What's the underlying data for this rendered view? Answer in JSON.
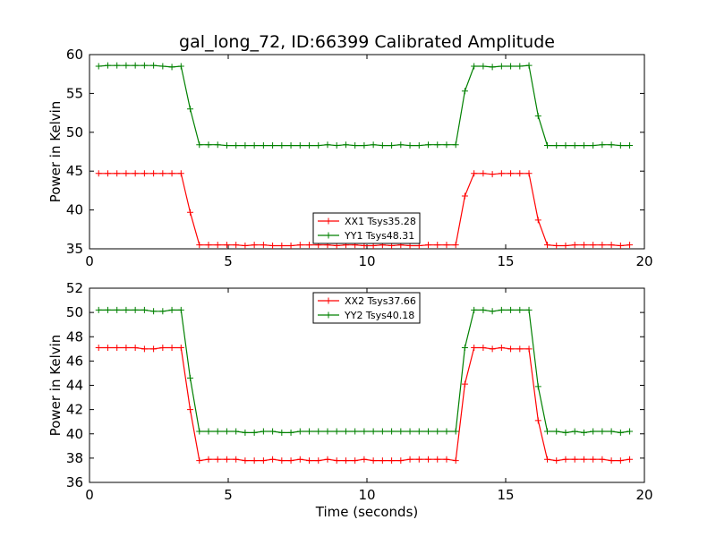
{
  "figure": {
    "title": "gal_long_72, ID:66399 Calibrated Amplitude",
    "xlabel": "Time (seconds)"
  },
  "chart_data": [
    {
      "type": "line",
      "title": "gal_long_72, ID:66399 Calibrated Amplitude",
      "xlabel": "",
      "ylabel": "Power in Kelvin",
      "xlim": [
        0,
        20
      ],
      "ylim": [
        35,
        60
      ],
      "xticks": [
        0,
        5,
        10,
        15,
        20
      ],
      "yticks": [
        35,
        40,
        45,
        50,
        55,
        60
      ],
      "grid": false,
      "legend": "bottom-center",
      "x": [
        0.33,
        0.66,
        0.99,
        1.32,
        1.65,
        1.98,
        2.31,
        2.64,
        2.97,
        3.3,
        3.63,
        3.96,
        4.29,
        4.62,
        4.95,
        5.28,
        5.61,
        5.94,
        6.27,
        6.6,
        6.93,
        7.26,
        7.59,
        7.92,
        8.25,
        8.58,
        8.91,
        9.24,
        9.57,
        9.9,
        10.23,
        10.56,
        10.89,
        11.22,
        11.55,
        11.88,
        12.21,
        12.54,
        12.87,
        13.2,
        13.53,
        13.86,
        14.19,
        14.52,
        14.85,
        15.18,
        15.51,
        15.84,
        16.17,
        16.5,
        16.83,
        17.16,
        17.49,
        17.82,
        18.15,
        18.48,
        18.81,
        19.14,
        19.47
      ],
      "series": [
        {
          "name": "XX1 Tsys35.28",
          "color": "#ff0000",
          "values": [
            44.7,
            44.7,
            44.7,
            44.7,
            44.7,
            44.7,
            44.7,
            44.7,
            44.7,
            44.7,
            39.7,
            35.5,
            35.5,
            35.5,
            35.5,
            35.5,
            35.4,
            35.5,
            35.5,
            35.4,
            35.4,
            35.4,
            35.5,
            35.5,
            35.5,
            35.5,
            35.4,
            35.5,
            35.5,
            35.4,
            35.4,
            35.5,
            35.4,
            35.5,
            35.4,
            35.4,
            35.5,
            35.5,
            35.5,
            35.5,
            41.8,
            44.7,
            44.7,
            44.6,
            44.7,
            44.7,
            44.7,
            44.7,
            38.7,
            35.5,
            35.4,
            35.4,
            35.5,
            35.5,
            35.5,
            35.5,
            35.5,
            35.4,
            35.5
          ]
        },
        {
          "name": "YY1 Tsys48.31",
          "color": "#008000",
          "values": [
            58.5,
            58.6,
            58.6,
            58.6,
            58.6,
            58.6,
            58.6,
            58.5,
            58.4,
            58.5,
            53.0,
            48.4,
            48.4,
            48.4,
            48.3,
            48.3,
            48.3,
            48.3,
            48.3,
            48.3,
            48.3,
            48.3,
            48.3,
            48.3,
            48.3,
            48.4,
            48.3,
            48.4,
            48.3,
            48.3,
            48.4,
            48.3,
            48.3,
            48.4,
            48.3,
            48.3,
            48.4,
            48.4,
            48.4,
            48.4,
            55.3,
            58.5,
            58.5,
            58.4,
            58.5,
            58.5,
            58.5,
            58.6,
            52.1,
            48.3,
            48.3,
            48.3,
            48.3,
            48.3,
            48.3,
            48.4,
            48.4,
            48.3,
            48.3
          ]
        }
      ]
    },
    {
      "type": "line",
      "title": "",
      "xlabel": "Time (seconds)",
      "ylabel": "Power in Kelvin",
      "xlim": [
        0,
        20
      ],
      "ylim": [
        36,
        52
      ],
      "xticks": [
        0,
        5,
        10,
        15,
        20
      ],
      "yticks": [
        36,
        38,
        40,
        42,
        44,
        46,
        48,
        50,
        52
      ],
      "grid": false,
      "legend": "top-center",
      "x": [
        0.33,
        0.66,
        0.99,
        1.32,
        1.65,
        1.98,
        2.31,
        2.64,
        2.97,
        3.3,
        3.63,
        3.96,
        4.29,
        4.62,
        4.95,
        5.28,
        5.61,
        5.94,
        6.27,
        6.6,
        6.93,
        7.26,
        7.59,
        7.92,
        8.25,
        8.58,
        8.91,
        9.24,
        9.57,
        9.9,
        10.23,
        10.56,
        10.89,
        11.22,
        11.55,
        11.88,
        12.21,
        12.54,
        12.87,
        13.2,
        13.53,
        13.86,
        14.19,
        14.52,
        14.85,
        15.18,
        15.51,
        15.84,
        16.17,
        16.5,
        16.83,
        17.16,
        17.49,
        17.82,
        18.15,
        18.48,
        18.81,
        19.14,
        19.47
      ],
      "series": [
        {
          "name": "XX2 Tsys37.66",
          "color": "#ff0000",
          "values": [
            47.1,
            47.1,
            47.1,
            47.1,
            47.1,
            47.0,
            47.0,
            47.1,
            47.1,
            47.1,
            42.0,
            37.8,
            37.9,
            37.9,
            37.9,
            37.9,
            37.8,
            37.8,
            37.8,
            37.9,
            37.8,
            37.8,
            37.9,
            37.8,
            37.8,
            37.9,
            37.8,
            37.8,
            37.8,
            37.9,
            37.8,
            37.8,
            37.8,
            37.8,
            37.9,
            37.9,
            37.9,
            37.9,
            37.9,
            37.8,
            44.1,
            47.1,
            47.1,
            47.0,
            47.1,
            47.0,
            47.0,
            47.0,
            41.1,
            37.9,
            37.8,
            37.9,
            37.9,
            37.9,
            37.9,
            37.9,
            37.8,
            37.8,
            37.9
          ]
        },
        {
          "name": "YY2 Tsys40.18",
          "color": "#008000",
          "values": [
            50.2,
            50.2,
            50.2,
            50.2,
            50.2,
            50.2,
            50.1,
            50.1,
            50.2,
            50.2,
            44.6,
            40.2,
            40.2,
            40.2,
            40.2,
            40.2,
            40.1,
            40.1,
            40.2,
            40.2,
            40.1,
            40.1,
            40.2,
            40.2,
            40.2,
            40.2,
            40.2,
            40.2,
            40.2,
            40.2,
            40.2,
            40.2,
            40.2,
            40.2,
            40.2,
            40.2,
            40.2,
            40.2,
            40.2,
            40.2,
            47.1,
            50.2,
            50.2,
            50.1,
            50.2,
            50.2,
            50.2,
            50.2,
            43.9,
            40.2,
            40.2,
            40.1,
            40.2,
            40.1,
            40.2,
            40.2,
            40.2,
            40.1,
            40.2
          ]
        }
      ]
    }
  ]
}
